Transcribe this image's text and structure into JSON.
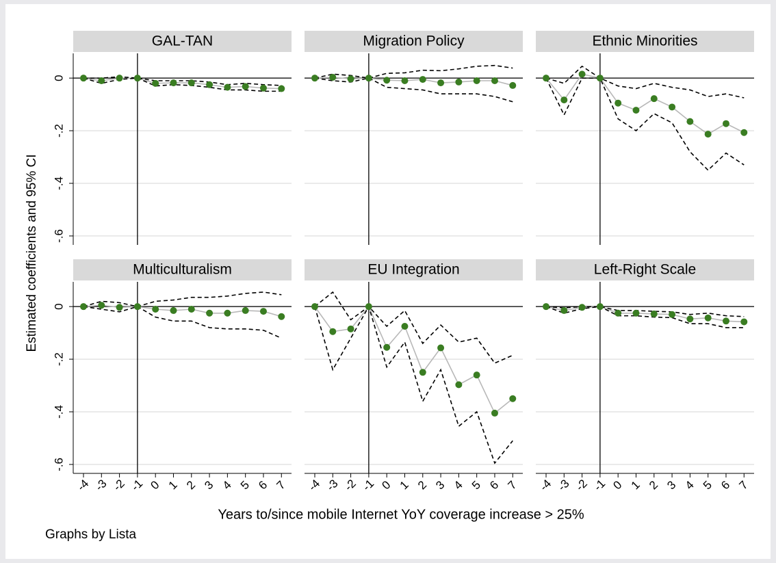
{
  "figure": {
    "y_label": "Estimated coefficients and 95% CI",
    "x_label": "Years to/since mobile Internet YoY coverage increase > 25%",
    "note": "Graphs by Lista"
  },
  "chart_data": [
    {
      "type": "line",
      "title": "GAL-TAN",
      "x": [
        -4,
        -3,
        -2,
        -1,
        0,
        1,
        2,
        3,
        4,
        5,
        6,
        7
      ],
      "xlim": [
        -4.57,
        7.56
      ],
      "ylim": [
        -0.634,
        0.094
      ],
      "yticks": [
        {
          "value": 0,
          "label": "0"
        },
        {
          "value": -0.2,
          "label": "-.2"
        },
        {
          "value": -0.4,
          "label": "-.4"
        },
        {
          "value": -0.6,
          "label": "-.6"
        }
      ],
      "grid": true,
      "hline": 0,
      "vline": -1,
      "series": [
        {
          "color": "#b8b8b8",
          "marker_color": "#3a7d22",
          "values": [
            0,
            -0.01,
            0,
            0,
            -0.02,
            -0.018,
            -0.018,
            -0.025,
            -0.035,
            -0.032,
            -0.038,
            -0.04
          ]
        },
        {
          "color": "#000000",
          "dashed": true,
          "values": [
            0,
            0,
            0.005,
            0,
            -0.01,
            -0.01,
            -0.01,
            -0.015,
            -0.025,
            -0.02,
            -0.025,
            -0.028
          ]
        },
        {
          "color": "#000000",
          "dashed": true,
          "values": [
            0,
            -0.02,
            -0.005,
            0,
            -0.03,
            -0.025,
            -0.028,
            -0.035,
            -0.045,
            -0.045,
            -0.05,
            -0.05
          ]
        }
      ]
    },
    {
      "type": "line",
      "title": "Migration Policy",
      "x": [
        -4,
        -3,
        -2,
        -1,
        0,
        1,
        2,
        3,
        4,
        5,
        6,
        7
      ],
      "xlim": [
        -4.57,
        7.56
      ],
      "ylim": [
        -0.634,
        0.094
      ],
      "yticks": [
        0,
        -0.2,
        -0.4,
        -0.6
      ],
      "grid": true,
      "hline": 0,
      "vline": -1,
      "series": [
        {
          "color": "#b8b8b8",
          "marker_color": "#3a7d22",
          "values": [
            0,
            0.003,
            -0.003,
            0,
            -0.008,
            -0.01,
            -0.005,
            -0.018,
            -0.015,
            -0.01,
            -0.01,
            -0.028
          ]
        },
        {
          "color": "#000000",
          "dashed": true,
          "values": [
            0,
            0.015,
            0.01,
            0,
            0.018,
            0.02,
            0.03,
            0.028,
            0.035,
            0.045,
            0.048,
            0.038
          ]
        },
        {
          "color": "#000000",
          "dashed": true,
          "values": [
            0,
            -0.01,
            -0.015,
            0,
            -0.035,
            -0.04,
            -0.045,
            -0.06,
            -0.06,
            -0.06,
            -0.07,
            -0.09
          ]
        }
      ]
    },
    {
      "type": "line",
      "title": "Ethnic Minorities",
      "x": [
        -4,
        -3,
        -2,
        -1,
        0,
        1,
        2,
        3,
        4,
        5,
        6,
        7
      ],
      "xlim": [
        -4.57,
        7.56
      ],
      "ylim": [
        -0.634,
        0.094
      ],
      "yticks": [
        0,
        -0.2,
        -0.4,
        -0.6
      ],
      "grid": true,
      "hline": 0,
      "vline": -1,
      "series": [
        {
          "color": "#b8b8b8",
          "marker_color": "#3a7d22",
          "values": [
            0,
            -0.083,
            0.015,
            0,
            -0.095,
            -0.122,
            -0.078,
            -0.11,
            -0.165,
            -0.213,
            -0.173,
            -0.207
          ]
        },
        {
          "color": "#000000",
          "dashed": true,
          "values": [
            0,
            -0.02,
            0.045,
            0,
            -0.03,
            -0.04,
            -0.02,
            -0.035,
            -0.045,
            -0.07,
            -0.06,
            -0.075
          ]
        },
        {
          "color": "#000000",
          "dashed": true,
          "values": [
            0,
            -0.14,
            0,
            0,
            -0.155,
            -0.2,
            -0.135,
            -0.17,
            -0.28,
            -0.35,
            -0.285,
            -0.33
          ]
        }
      ]
    },
    {
      "type": "line",
      "title": "Multiculturalism",
      "x": [
        -4,
        -3,
        -2,
        -1,
        0,
        1,
        2,
        3,
        4,
        5,
        6,
        7
      ],
      "xlim": [
        -4.57,
        7.56
      ],
      "ylim": [
        -0.634,
        0.094
      ],
      "xticks": [
        -4,
        -3,
        -2,
        -1,
        0,
        1,
        2,
        3,
        4,
        5,
        6,
        7
      ],
      "yticks": [
        {
          "value": 0,
          "label": "0"
        },
        {
          "value": -0.2,
          "label": "-.2"
        },
        {
          "value": -0.4,
          "label": "-.4"
        },
        {
          "value": -0.6,
          "label": "-.6"
        }
      ],
      "grid": true,
      "hline": 0,
      "vline": -1,
      "series": [
        {
          "color": "#b8b8b8",
          "marker_color": "#3a7d22",
          "values": [
            0,
            0.005,
            -0.003,
            0,
            -0.01,
            -0.015,
            -0.01,
            -0.025,
            -0.025,
            -0.015,
            -0.018,
            -0.038
          ]
        },
        {
          "color": "#000000",
          "dashed": true,
          "values": [
            0,
            0.02,
            0.015,
            0,
            0.02,
            0.025,
            0.035,
            0.035,
            0.04,
            0.05,
            0.055,
            0.045
          ]
        },
        {
          "color": "#000000",
          "dashed": true,
          "values": [
            0,
            -0.01,
            -0.02,
            0,
            -0.04,
            -0.055,
            -0.055,
            -0.08,
            -0.085,
            -0.085,
            -0.09,
            -0.12
          ]
        }
      ]
    },
    {
      "type": "line",
      "title": "EU Integration",
      "x": [
        -4,
        -3,
        -2,
        -1,
        0,
        1,
        2,
        3,
        4,
        5,
        6,
        7
      ],
      "xlim": [
        -4.57,
        7.56
      ],
      "ylim": [
        -0.634,
        0.094
      ],
      "xticks": [
        -4,
        -3,
        -2,
        -1,
        0,
        1,
        2,
        3,
        4,
        5,
        6,
        7
      ],
      "yticks": [
        0,
        -0.2,
        -0.4,
        -0.6
      ],
      "grid": true,
      "hline": 0,
      "vline": -1,
      "series": [
        {
          "color": "#b8b8b8",
          "marker_color": "#3a7d22",
          "values": [
            0,
            -0.095,
            -0.085,
            0,
            -0.155,
            -0.075,
            -0.25,
            -0.157,
            -0.297,
            -0.26,
            -0.405,
            -0.35
          ]
        },
        {
          "color": "#000000",
          "dashed": true,
          "values": [
            0,
            0.055,
            -0.05,
            0,
            -0.075,
            -0.015,
            -0.14,
            -0.07,
            -0.135,
            -0.12,
            -0.215,
            -0.185
          ]
        },
        {
          "color": "#000000",
          "dashed": true,
          "values": [
            0,
            -0.24,
            -0.12,
            0,
            -0.23,
            -0.135,
            -0.36,
            -0.24,
            -0.455,
            -0.4,
            -0.595,
            -0.51
          ]
        }
      ]
    },
    {
      "type": "line",
      "title": "Left-Right Scale",
      "x": [
        -4,
        -3,
        -2,
        -1,
        0,
        1,
        2,
        3,
        4,
        5,
        6,
        7
      ],
      "xlim": [
        -4.57,
        7.56
      ],
      "ylim": [
        -0.634,
        0.094
      ],
      "xticks": [
        -4,
        -3,
        -2,
        -1,
        0,
        1,
        2,
        3,
        4,
        5,
        6,
        7
      ],
      "yticks": [
        0,
        -0.2,
        -0.4,
        -0.6
      ],
      "grid": true,
      "hline": 0,
      "vline": -1,
      "series": [
        {
          "color": "#b8b8b8",
          "marker_color": "#3a7d22",
          "values": [
            0,
            -0.015,
            -0.003,
            0,
            -0.025,
            -0.025,
            -0.028,
            -0.03,
            -0.047,
            -0.043,
            -0.055,
            -0.058
          ]
        },
        {
          "color": "#000000",
          "dashed": true,
          "values": [
            0,
            -0.005,
            0,
            0,
            -0.015,
            -0.015,
            -0.018,
            -0.02,
            -0.03,
            -0.025,
            -0.035,
            -0.038
          ]
        },
        {
          "color": "#000000",
          "dashed": true,
          "values": [
            0,
            -0.025,
            -0.008,
            0,
            -0.035,
            -0.035,
            -0.04,
            -0.042,
            -0.065,
            -0.065,
            -0.08,
            -0.08
          ]
        }
      ]
    }
  ]
}
